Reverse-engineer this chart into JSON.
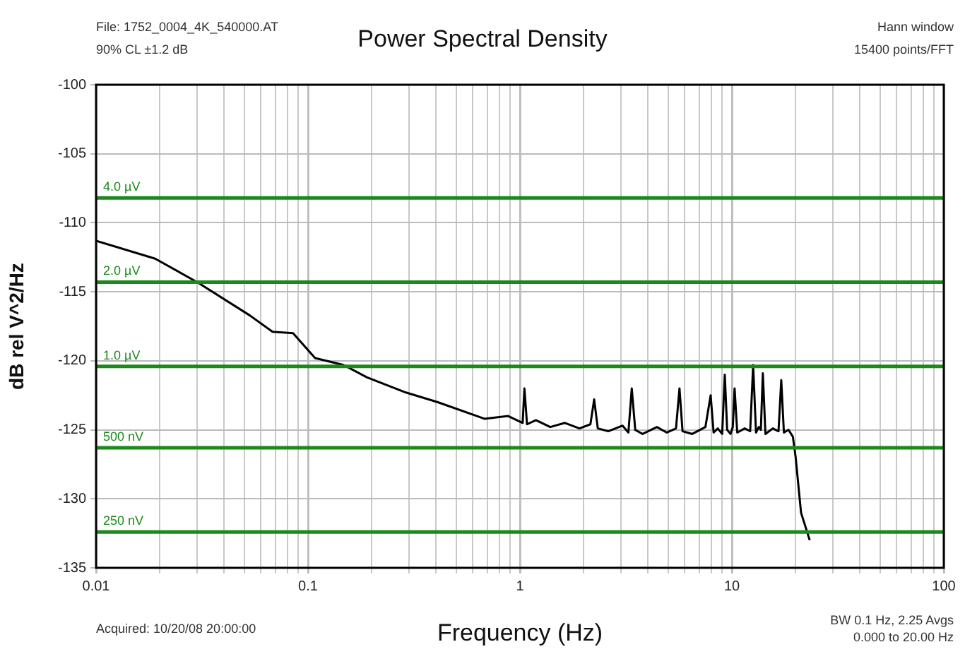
{
  "chart_data": {
    "type": "line",
    "title": "Power Spectral Density",
    "xlabel": "Frequency (Hz)",
    "ylabel": "dB rel V^2/Hz",
    "annotations": [
      "File: 1752_0004_4K_540000.AT",
      "90% CL ±1.2 dB",
      "Hann window",
      "15400 points/FFT",
      "Acquired: 10/20/08 20:00:00",
      "BW 0.1 Hz, 2.25 Avgs",
      "0.000 to 20.00 Hz"
    ],
    "series": [
      {
        "color": "#000000",
        "x": [
          0.01,
          0.019,
          0.03,
          0.053,
          0.068,
          0.085,
          0.108,
          0.147,
          0.19,
          0.29,
          0.41,
          0.68,
          0.88,
          1.03,
          1.05,
          1.08,
          1.19,
          1.39,
          1.63,
          1.91,
          2.15,
          2.24,
          2.33,
          2.61,
          3.05,
          3.25,
          3.37,
          3.5,
          3.79,
          4.43,
          4.93,
          5.45,
          5.66,
          5.85,
          6.5,
          7.5,
          7.94,
          8.2,
          8.58,
          9.0,
          9.26,
          9.5,
          9.85,
          10.1,
          10.3,
          10.6,
          11.5,
          12.2,
          12.6,
          13.0,
          13.4,
          13.7,
          14.0,
          14.4,
          15.6,
          16.6,
          17.1,
          17.6,
          18.5,
          19.4,
          20.0,
          21.2,
          23.3
        ],
        "values": [
          -111.3,
          -112.6,
          -114.3,
          -116.7,
          -117.9,
          -118.0,
          -119.8,
          -120.3,
          -121.2,
          -122.3,
          -123.0,
          -124.2,
          -124.0,
          -124.5,
          -122.0,
          -124.6,
          -124.3,
          -124.8,
          -124.5,
          -124.9,
          -124.6,
          -122.8,
          -124.9,
          -125.1,
          -124.7,
          -125.2,
          -122.0,
          -125.0,
          -125.3,
          -124.8,
          -125.2,
          -124.9,
          -122.0,
          -125.1,
          -125.3,
          -124.8,
          -122.5,
          -125.2,
          -124.9,
          -125.3,
          -121.0,
          -125.0,
          -125.3,
          -124.8,
          -122.0,
          -125.2,
          -124.9,
          -125.1,
          -120.3,
          -125.2,
          -124.8,
          -125.0,
          -120.9,
          -125.3,
          -124.9,
          -125.1,
          -121.4,
          -125.2,
          -125.0,
          -125.5,
          -127.0,
          -131.0,
          -133.0
        ]
      }
    ],
    "log": "x",
    "xlim": [
      0.01,
      100
    ],
    "xticks": [
      0.01,
      {
        "value": 0.02,
        "label": null
      },
      {
        "value": 0.03,
        "label": null
      },
      {
        "value": 0.04,
        "label": null
      },
      {
        "value": 0.05,
        "label": null
      },
      {
        "value": 0.06,
        "label": null
      },
      {
        "value": 0.07,
        "label": null
      },
      {
        "value": 0.08,
        "label": null
      },
      {
        "value": 0.09,
        "label": null
      },
      0.1,
      {
        "value": 0.2,
        "label": null
      },
      {
        "value": 0.3,
        "label": null
      },
      {
        "value": 0.4,
        "label": null
      },
      {
        "value": 0.5,
        "label": null
      },
      {
        "value": 0.6,
        "label": null
      },
      {
        "value": 0.7,
        "label": null
      },
      {
        "value": 0.8,
        "label": null
      },
      {
        "value": 0.9,
        "label": null
      },
      1,
      {
        "value": 2,
        "label": null
      },
      {
        "value": 3,
        "label": null
      },
      {
        "value": 4,
        "label": null
      },
      {
        "value": 5,
        "label": null
      },
      {
        "value": 6,
        "label": null
      },
      {
        "value": 7,
        "label": null
      },
      {
        "value": 8,
        "label": null
      },
      {
        "value": 9,
        "label": null
      },
      10,
      {
        "value": 20,
        "label": null
      },
      {
        "value": 30,
        "label": null
      },
      {
        "value": 40,
        "label": null
      },
      {
        "value": 50,
        "label": null
      },
      {
        "value": 60,
        "label": null
      },
      {
        "value": 70,
        "label": null
      },
      {
        "value": 80,
        "label": null
      },
      {
        "value": 90,
        "label": null
      },
      100
    ],
    "ylim": [
      -135,
      -100
    ],
    "yticks": [
      -135,
      -130,
      -125,
      -120,
      -115,
      -110,
      -105,
      -100
    ],
    "grid": true,
    "marker": "none",
    "line_style": "solid",
    "ref_lines": [
      {
        "axis": "y",
        "value": -108.2,
        "label": "4.0 µV",
        "color": "#1a8a1a"
      },
      {
        "axis": "y",
        "value": -114.3,
        "label": "2.0 µV",
        "color": "#1a8a1a"
      },
      {
        "axis": "y",
        "value": -120.4,
        "label": "1.0 µV",
        "color": "#1a8a1a"
      },
      {
        "axis": "y",
        "value": -126.3,
        "label": "500 nV",
        "color": "#1a8a1a"
      },
      {
        "axis": "y",
        "value": -132.4,
        "label": "250 nV",
        "color": "#1a8a1a"
      }
    ]
  }
}
